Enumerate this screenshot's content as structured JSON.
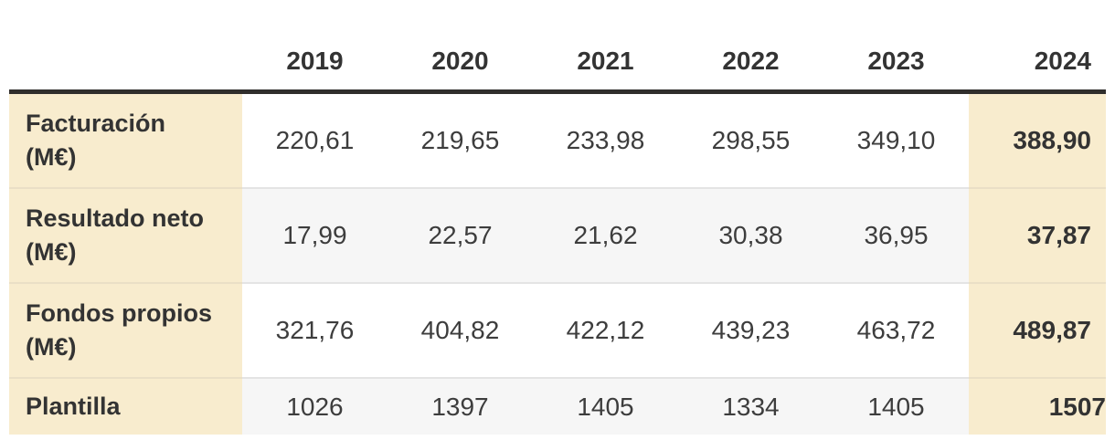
{
  "table": {
    "corner_label": "",
    "years": [
      "2019",
      "2020",
      "2021",
      "2022",
      "2023",
      "2024"
    ],
    "highlight_column": "2024",
    "rows": [
      {
        "key": "facturacion",
        "label_lines": [
          "Facturación",
          "(M€)"
        ],
        "values": [
          "220,61",
          "219,65",
          "233,98",
          "298,55",
          "349,10",
          "388,90"
        ]
      },
      {
        "key": "resultado-neto",
        "label_lines": [
          "Resultado neto",
          "(M€)"
        ],
        "values": [
          "17,99",
          "22,57",
          "21,62",
          "30,38",
          "36,95",
          "37,87"
        ]
      },
      {
        "key": "fondos-propios",
        "label_lines": [
          "Fondos propios",
          "(M€)"
        ],
        "values": [
          "321,76",
          "404,82",
          "422,12",
          "439,23",
          "463,72",
          "489,87"
        ]
      },
      {
        "key": "plantilla",
        "label_lines": [
          "Plantilla"
        ],
        "values": [
          "1026",
          "1397",
          "1405",
          "1334",
          "1405",
          "1507"
        ]
      }
    ]
  },
  "chart_data": {
    "type": "table",
    "categories": [
      "2019",
      "2020",
      "2021",
      "2022",
      "2023",
      "2024"
    ],
    "series": [
      {
        "name": "Facturación (M€)",
        "values": [
          220.61,
          219.65,
          233.98,
          298.55,
          349.1,
          388.9
        ]
      },
      {
        "name": "Resultado neto (M€)",
        "values": [
          17.99,
          22.57,
          21.62,
          30.38,
          36.95,
          37.87
        ]
      },
      {
        "name": "Fondos propios (M€)",
        "values": [
          321.76,
          404.82,
          422.12,
          439.23,
          463.72,
          489.87
        ]
      },
      {
        "name": "Plantilla",
        "values": [
          1026,
          1397,
          1405,
          1334,
          1405,
          1507
        ]
      }
    ],
    "title": "",
    "legend_position": "none",
    "notes": "Last column (2024) and row-label column highlighted cream; data rows zebra-striped"
  },
  "colors": {
    "highlight_bg": "#f8ecce",
    "highlight_separator": "#eadfc6",
    "stripe_bg": "#f6f6f6",
    "row_separator": "#e4e4e4",
    "header_rule": "#302e2c",
    "label_text": "#333333",
    "value_text": "#3d3d3d"
  }
}
